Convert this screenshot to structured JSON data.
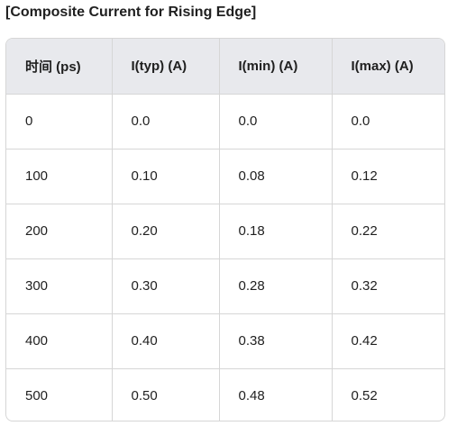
{
  "title": "[Composite Current for Rising Edge]",
  "table": {
    "headers": [
      "时间 (ps)",
      "I(typ) (A)",
      "I(min) (A)",
      "I(max) (A)"
    ],
    "rows": [
      [
        "0",
        "0.0",
        "0.0",
        "0.0"
      ],
      [
        "100",
        "0.10",
        "0.08",
        "0.12"
      ],
      [
        "200",
        "0.20",
        "0.18",
        "0.22"
      ],
      [
        "300",
        "0.30",
        "0.28",
        "0.32"
      ],
      [
        "400",
        "0.40",
        "0.38",
        "0.42"
      ],
      [
        "500",
        "0.50",
        "0.48",
        "0.52"
      ]
    ]
  }
}
